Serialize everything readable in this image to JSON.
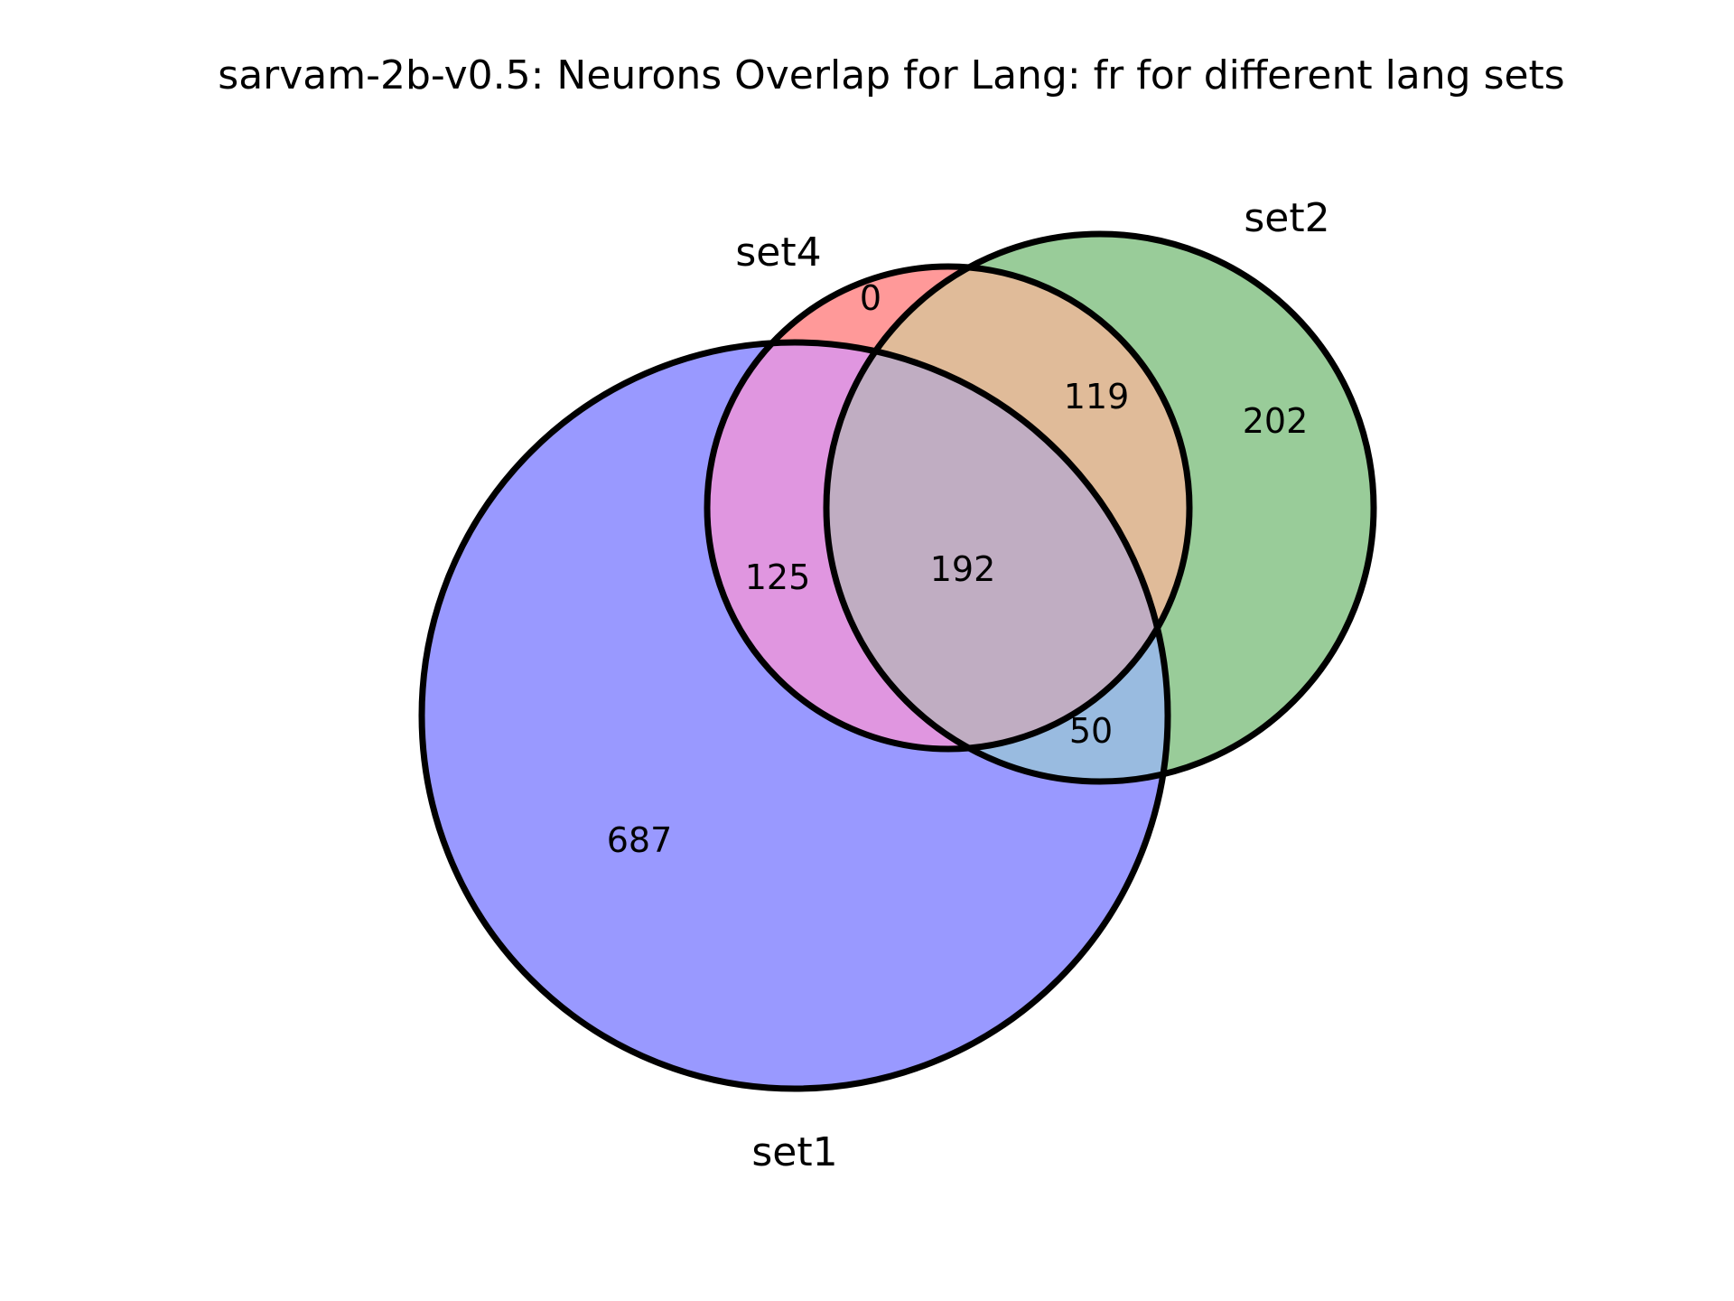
{
  "title": "sarvam-2b-v0.5: Neurons Overlap for Lang: fr for different lang sets",
  "sets": {
    "set1": {
      "label": "set1",
      "color": "#0000ff"
    },
    "set2": {
      "label": "set2",
      "color": "#008000"
    },
    "set4": {
      "label": "set4",
      "color": "#ff0000"
    }
  },
  "regions": {
    "set1_only": "687",
    "set2_only": "202",
    "set4_only": "0",
    "set1_set4": "125",
    "set2_set4": "119",
    "set1_set2": "50",
    "set1_set2_set4": "192"
  },
  "fills": {
    "set1_only": "#9999ff",
    "set2_only": "#99cc99",
    "set4_only": "#ff9999",
    "set1_set4": "#e096e0",
    "set2_set4": "#e0bb99",
    "set1_set2": "#99bbe0",
    "set1_set2_set4": "#c0adc2"
  }
}
